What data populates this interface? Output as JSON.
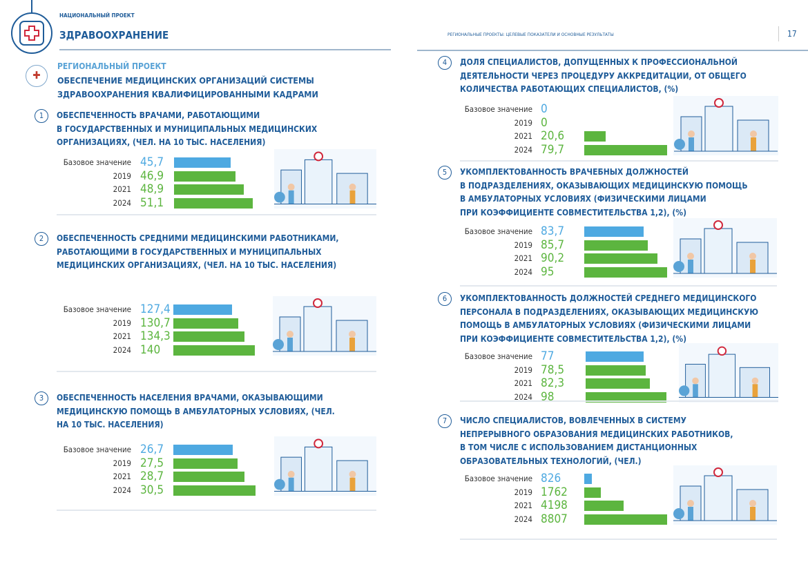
{
  "header": {
    "national_project_label": "НАЦИОНАЛЬНЫЙ ПРОЕКТ",
    "national_project_name": "ЗДРАВООХРАНЕНИЕ",
    "running_title": "РЕГИОНАЛЬНЫЕ ПРОЕКТЫ: ЦЕЛЕВЫЕ ПОКАЗАТЕЛИ И ОСНОВНЫЕ РЕЗУЛЬТАТЫ",
    "page_number": "17"
  },
  "regional_project": {
    "label": "РЕГИОНАЛЬНЫЙ ПРОЕКТ",
    "title_lines": [
      "ОБЕСПЕЧЕНИЕ МЕДИЦИНСКИХ ОРГАНИЗАЦИЙ СИСТЕМЫ",
      "ЗДРАВООХРАНЕНИЯ КВАЛИФИЦИРОВАННЫМИ КАДРАМИ"
    ]
  },
  "colors": {
    "primary": "#1f5c99",
    "base_value": "#4ea9e1",
    "target_value": "#5cb53f"
  },
  "chart_data": [
    {
      "type": "bar",
      "number": "1",
      "title_lines": [
        "ОБЕСПЕЧЕННОСТЬ ВРАЧАМИ, РАБОТАЮЩИМИ",
        "В ГОСУДАРСТВЕННЫХ И МУНИЦИПАЛЬНЫХ МЕДИЦИНСКИХ",
        "ОРГАНИЗАЦИЯХ, (ЧЕЛ. НА 10 ТЫС. НАСЕЛЕНИЯ)"
      ],
      "categories": [
        "Базовое значение",
        "2019",
        "2021",
        "2024"
      ],
      "values_text": [
        "45,7",
        "46,9",
        "48,9",
        "51,1"
      ],
      "values": [
        45.7,
        46.9,
        48.9,
        51.1
      ]
    },
    {
      "type": "bar",
      "number": "2",
      "title_lines": [
        "ОБЕСПЕЧЕННОСТЬ СРЕДНИМИ МЕДИЦИНСКИМИ РАБОТНИКАМИ,",
        "РАБОТАЮЩИМИ В ГОСУДАРСТВЕННЫХ И МУНИЦИПАЛЬНЫХ",
        "МЕДИЦИНСКИХ ОРГАНИЗАЦИЯХ, (ЧЕЛ. НА 10 ТЫС. НАСЕЛЕНИЯ)"
      ],
      "categories": [
        "Базовое значение",
        "2019",
        "2021",
        "2024"
      ],
      "values_text": [
        "127,4",
        "130,7",
        "134,3",
        "140"
      ],
      "values": [
        127.4,
        130.7,
        134.3,
        140
      ]
    },
    {
      "type": "bar",
      "number": "3",
      "title_lines": [
        "ОБЕСПЕЧЕННОСТЬ НАСЕЛЕНИЯ ВРАЧАМИ, ОКАЗЫВАЮЩИМИ",
        "МЕДИЦИНСКУЮ ПОМОЩЬ В АМБУЛАТОРНЫХ УСЛОВИЯХ, (ЧЕЛ.",
        "НА 10 ТЫС. НАСЕЛЕНИЯ)"
      ],
      "categories": [
        "Базовое значение",
        "2019",
        "2021",
        "2024"
      ],
      "values_text": [
        "26,7",
        "27,5",
        "28,7",
        "30,5"
      ],
      "values": [
        26.7,
        27.5,
        28.7,
        30.5
      ]
    },
    {
      "type": "bar",
      "number": "4",
      "title_lines": [
        "ДОЛЯ СПЕЦИАЛИСТОВ, ДОПУЩЕННЫХ К ПРОФЕССИОНАЛЬНОЙ",
        "ДЕЯТЕЛЬНОСТИ ЧЕРЕЗ ПРОЦЕДУРУ АККРЕДИТАЦИИ, ОТ ОБЩЕГО",
        "КОЛИЧЕСТВА РАБОТАЮЩИХ СПЕЦИАЛИСТОВ, (%)"
      ],
      "categories": [
        "Базовое значение",
        "2019",
        "2021",
        "2024"
      ],
      "values_text": [
        "0",
        "0",
        "20,6",
        "79,7"
      ],
      "values": [
        0,
        0,
        20.6,
        79.7
      ]
    },
    {
      "type": "bar",
      "number": "5",
      "title_lines": [
        "УКОМПЛЕКТОВАННОСТЬ ВРАЧЕБНЫХ ДОЛЖНОСТЕЙ",
        "В ПОДРАЗДЕЛЕНИЯХ, ОКАЗЫВАЮЩИХ МЕДИЦИНСКУЮ ПОМОЩЬ",
        "В АМБУЛАТОРНЫХ УСЛОВИЯХ (ФИЗИЧЕСКИМИ ЛИЦАМИ",
        "ПРИ КОЭФФИЦИЕНТЕ СОВМЕСТИТЕЛЬСТВА 1,2), (%)"
      ],
      "categories": [
        "Базовое значение",
        "2019",
        "2021",
        "2024"
      ],
      "values_text": [
        "83,7",
        "85,7",
        "90,2",
        "95"
      ],
      "values": [
        83.7,
        85.7,
        90.2,
        95
      ]
    },
    {
      "type": "bar",
      "number": "6",
      "title_lines": [
        "УКОМПЛЕКТОВАННОСТЬ ДОЛЖНОСТЕЙ СРЕДНЕГО МЕДИЦИНСКОГО",
        "ПЕРСОНАЛА В ПОДРАЗДЕЛЕНИЯХ, ОКАЗЫВАЮЩИХ МЕДИЦИНСКУЮ",
        "ПОМОЩЬ В АМБУЛАТОРНЫХ УСЛОВИЯХ (ФИЗИЧЕСКИМИ ЛИЦАМИ",
        "ПРИ КОЭФФИЦИЕНТЕ СОВМЕСТИТЕЛЬСТВА 1,2), (%)"
      ],
      "categories": [
        "Базовое значение",
        "2019",
        "2021",
        "2024"
      ],
      "values_text": [
        "77",
        "78,5",
        "82,3",
        "98"
      ],
      "values": [
        77,
        78.5,
        82.3,
        98
      ]
    },
    {
      "type": "bar",
      "number": "7",
      "title_lines": [
        "ЧИСЛО СПЕЦИАЛИСТОВ, ВОВЛЕЧЕННЫХ В СИСТЕМУ",
        "НЕПРЕРЫВНОГО ОБРАЗОВАНИЯ МЕДИЦИНСКИХ РАБОТНИКОВ,",
        "В ТОМ ЧИСЛЕ С ИСПОЛЬЗОВАНИЕМ ДИСТАНЦИОННЫХ",
        "ОБРАЗОВАТЕЛЬНЫХ ТЕХНОЛОГИЙ, (ЧЕЛ.)"
      ],
      "categories": [
        "Базовое значение",
        "2019",
        "2021",
        "2024"
      ],
      "values_text": [
        "826",
        "1762",
        "4198",
        "8807"
      ],
      "values": [
        826,
        1762,
        4198,
        8807
      ]
    }
  ]
}
